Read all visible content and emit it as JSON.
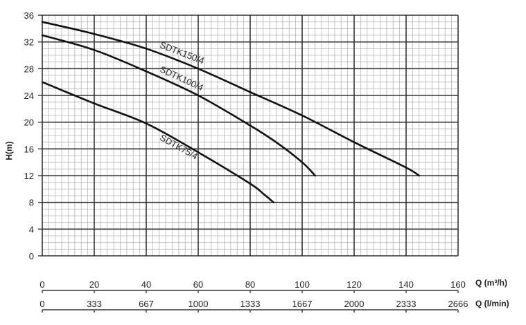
{
  "chart_data": {
    "type": "line",
    "ylabel": "H(m)",
    "ylim": [
      0,
      36
    ],
    "yticks": [
      "0",
      "4",
      "8",
      "12",
      "16",
      "20",
      "24",
      "28",
      "32",
      "36"
    ],
    "xlim": [
      0,
      160
    ],
    "x_axes": [
      {
        "label": "Q (m³/h)",
        "ticks": [
          "0",
          "20",
          "40",
          "60",
          "80",
          "100",
          "120",
          "140",
          "160"
        ]
      },
      {
        "label": "Q (l/min)",
        "ticks": [
          "0",
          "333",
          "667",
          "1000",
          "1333",
          "1667",
          "2000",
          "2333",
          "2666"
        ]
      }
    ],
    "grid": true,
    "series": [
      {
        "name": "SDTK150/4",
        "x": [
          0,
          20,
          40,
          60,
          80,
          100,
          120,
          140,
          145
        ],
        "y": [
          35,
          33.2,
          31,
          28,
          24.5,
          21,
          17,
          13.2,
          12
        ]
      },
      {
        "name": "SDTK100/4",
        "x": [
          0,
          20,
          40,
          60,
          80,
          90,
          100,
          105
        ],
        "y": [
          33,
          30.8,
          27.6,
          24,
          19.5,
          17,
          14,
          12
        ]
      },
      {
        "name": "SDTK75/4",
        "x": [
          0,
          20,
          40,
          60,
          80,
          85,
          89
        ],
        "y": [
          26,
          22.8,
          19.8,
          15.5,
          10.8,
          9.3,
          8
        ]
      }
    ]
  }
}
